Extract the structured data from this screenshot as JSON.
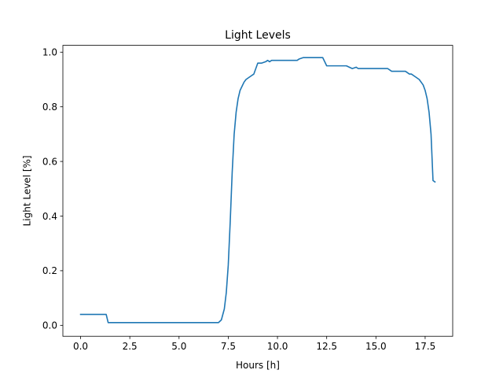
{
  "chart_data": {
    "type": "line",
    "title": "Light Levels",
    "xlabel": "Hours [h]",
    "ylabel": "Light Level [%]",
    "xlim": [
      -0.9,
      18.9
    ],
    "ylim": [
      -0.04,
      1.025
    ],
    "xticks": [
      0.0,
      2.5,
      5.0,
      7.5,
      10.0,
      12.5,
      15.0,
      17.5
    ],
    "xtick_labels": [
      "0.0",
      "2.5",
      "5.0",
      "7.5",
      "10.0",
      "12.5",
      "15.0",
      "17.5"
    ],
    "yticks": [
      0.0,
      0.2,
      0.4,
      0.6,
      0.8,
      1.0
    ],
    "ytick_labels": [
      "0.0",
      "0.2",
      "0.4",
      "0.6",
      "0.8",
      "1.0"
    ],
    "grid": false,
    "legend": "none",
    "series": [
      {
        "color": "#1f77b4",
        "x": [
          0.0,
          1.3,
          1.4,
          7.0,
          7.15,
          7.3,
          7.4,
          7.5,
          7.6,
          7.7,
          7.8,
          7.9,
          8.0,
          8.1,
          8.2,
          8.3,
          8.4,
          8.5,
          8.6,
          8.8,
          9.0,
          9.2,
          9.4,
          9.5,
          9.6,
          9.7,
          9.8,
          10.0,
          10.5,
          11.0,
          11.1,
          11.3,
          12.3,
          12.5,
          13.5,
          13.8,
          14.0,
          14.1,
          15.6,
          15.8,
          16.5,
          16.7,
          16.8,
          17.0,
          17.2,
          17.4,
          17.5,
          17.6,
          17.7,
          17.8,
          17.9,
          18.0
        ],
        "values": [
          0.04,
          0.04,
          0.01,
          0.01,
          0.02,
          0.06,
          0.12,
          0.22,
          0.38,
          0.56,
          0.7,
          0.78,
          0.83,
          0.86,
          0.875,
          0.89,
          0.9,
          0.905,
          0.91,
          0.92,
          0.96,
          0.96,
          0.965,
          0.97,
          0.965,
          0.97,
          0.97,
          0.97,
          0.97,
          0.97,
          0.975,
          0.98,
          0.98,
          0.95,
          0.95,
          0.94,
          0.945,
          0.94,
          0.94,
          0.93,
          0.93,
          0.92,
          0.92,
          0.91,
          0.9,
          0.88,
          0.86,
          0.83,
          0.78,
          0.7,
          0.53,
          0.525
        ]
      }
    ]
  }
}
